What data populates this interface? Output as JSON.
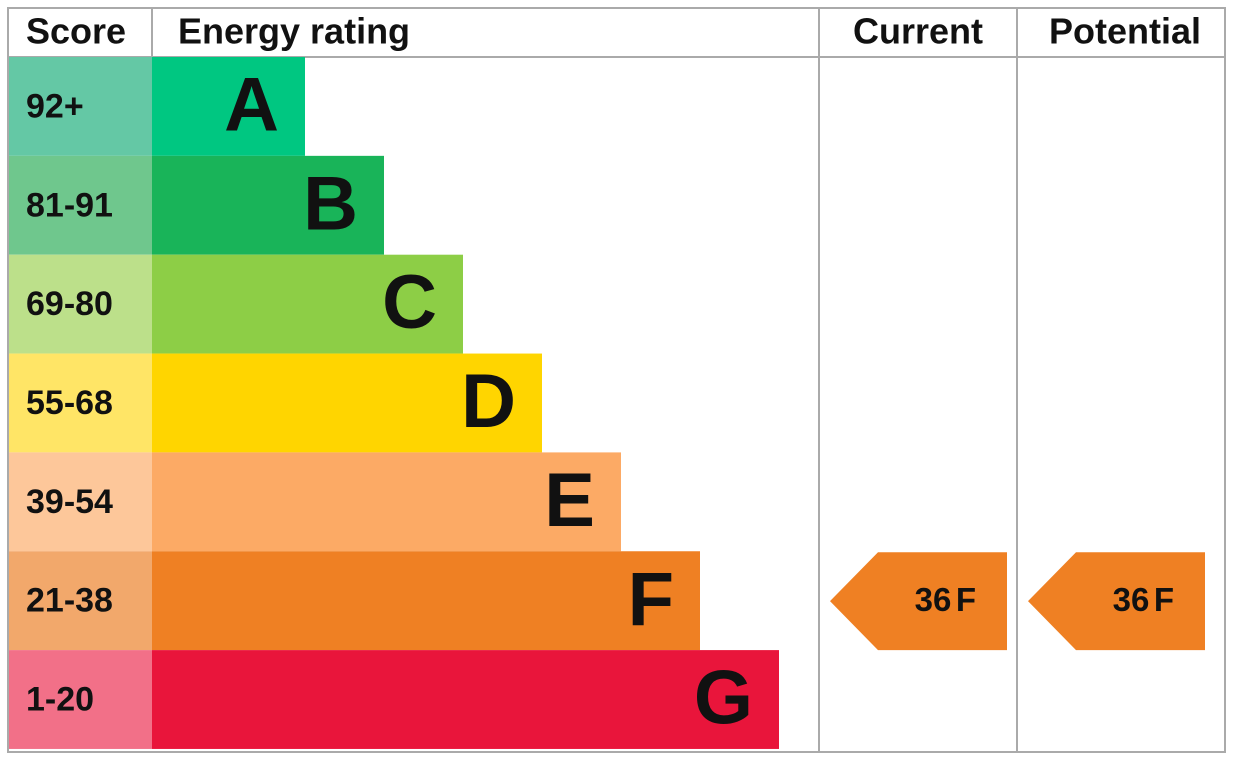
{
  "header": {
    "score": "Score",
    "rating": "Energy rating",
    "current": "Current",
    "potential": "Potential"
  },
  "bands": [
    {
      "score": "92+",
      "letter": "A",
      "color": "#00c781",
      "score_color": "#64c8a5"
    },
    {
      "score": "81-91",
      "letter": "B",
      "color": "#19b459",
      "score_color": "#6fc78d"
    },
    {
      "score": "69-80",
      "letter": "C",
      "color": "#8dce46",
      "score_color": "#bce08a"
    },
    {
      "score": "55-68",
      "letter": "D",
      "color": "#ffd500",
      "score_color": "#ffe566"
    },
    {
      "score": "39-54",
      "letter": "E",
      "color": "#fcaa65",
      "score_color": "#fdc79a"
    },
    {
      "score": "21-38",
      "letter": "F",
      "color": "#ef8023",
      "score_color": "#f2a86b"
    },
    {
      "score": "1-20",
      "letter": "G",
      "color": "#e9153b",
      "score_color": "#f27088"
    }
  ],
  "current": {
    "value": 36,
    "letter": "F"
  },
  "potential": {
    "value": 36,
    "letter": "F"
  }
}
